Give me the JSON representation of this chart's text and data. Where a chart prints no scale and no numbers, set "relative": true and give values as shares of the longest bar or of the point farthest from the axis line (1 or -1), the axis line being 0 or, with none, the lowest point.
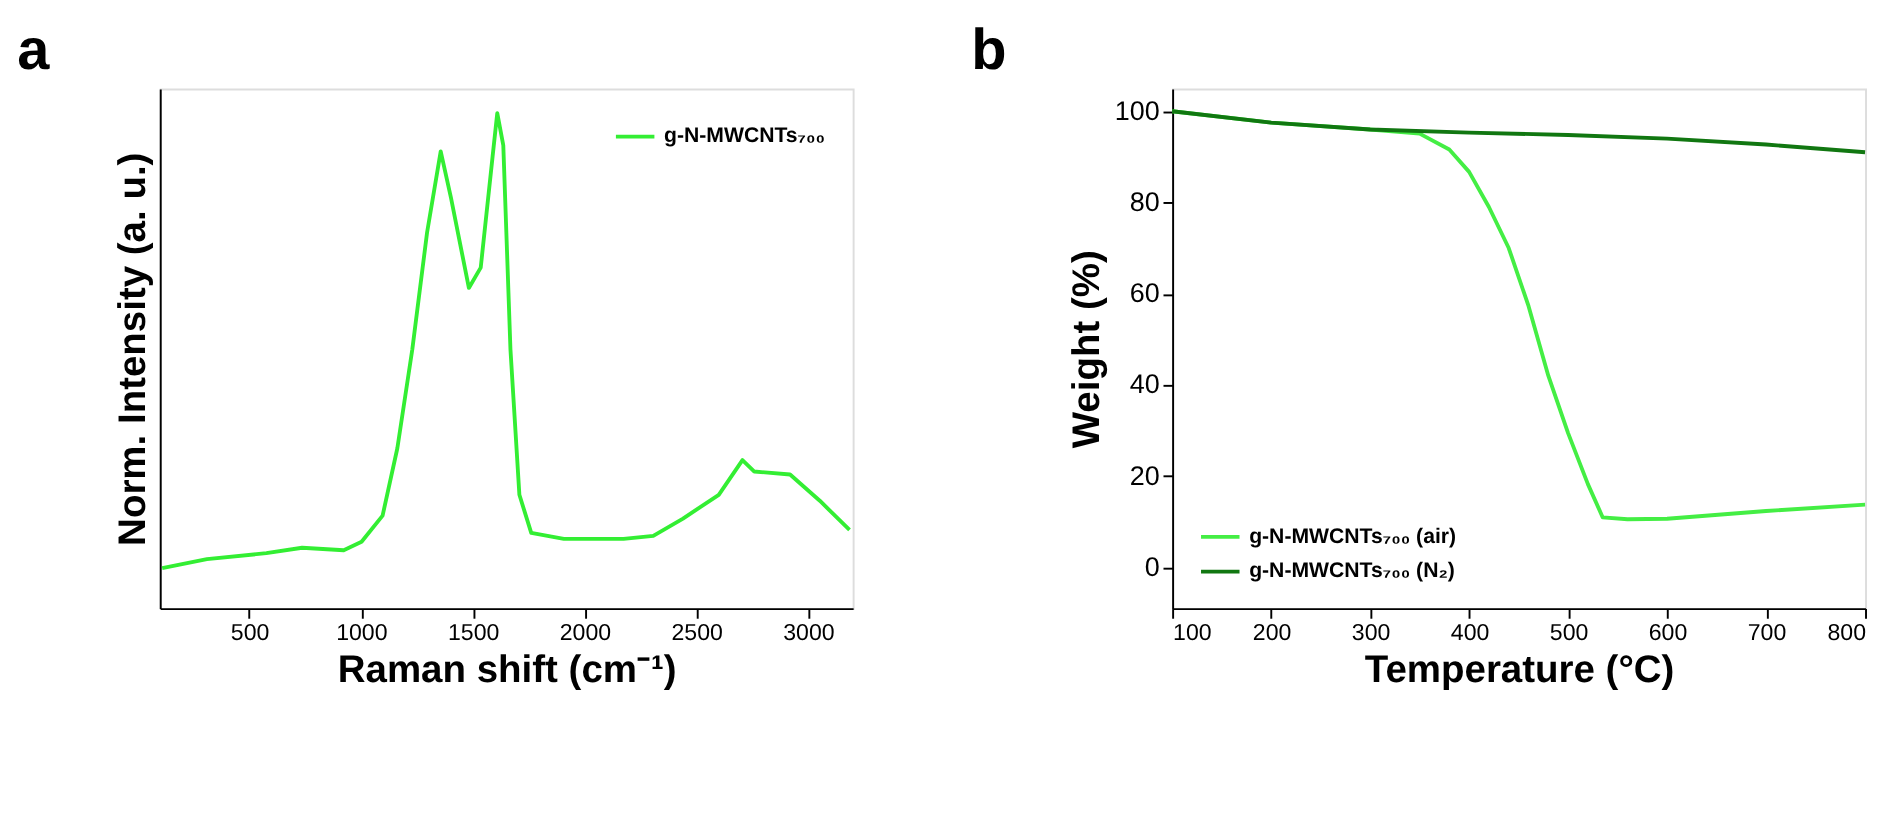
{
  "chart_data": [
    {
      "type": "line",
      "title": "a",
      "xlabel": "Raman shift (cm⁻¹)",
      "ylabel": "Norm. Intensity (a. u.)",
      "relative": true,
      "tick_labels": "x",
      "grid": false,
      "legend": "top right",
      "xlim": [
        100,
        3200
      ],
      "xticks": [
        500,
        1000,
        1500,
        2000,
        2500,
        3000
      ],
      "series": [
        {
          "name": "g-N-MWCNTs₇₀₀",
          "color": "#33ee33",
          "x": [
            111,
            311,
            577,
            737,
            923,
            1003,
            1097,
            1163,
            1230,
            1296,
            1357,
            1403,
            1483,
            1536,
            1589,
            1610,
            1637,
            1669,
            1709,
            1762,
            1908,
            2175,
            2308,
            2441,
            2601,
            2707,
            2760,
            2920,
            3053,
            3186
          ],
          "values": [
            0.081,
            0.099,
            0.111,
            0.122,
            0.117,
            0.134,
            0.187,
            0.323,
            0.523,
            0.759,
            0.923,
            0.829,
            0.647,
            0.688,
            0.912,
            1.0,
            0.935,
            0.523,
            0.229,
            0.152,
            0.14,
            0.14,
            0.146,
            0.181,
            0.229,
            0.299,
            0.276,
            0.27,
            0.217,
            0.158
          ]
        }
      ]
    },
    {
      "type": "line",
      "title": "b",
      "xlabel": "Temperature (°C)",
      "ylabel": "Weight (%)",
      "grid": false,
      "legend": "bottom left",
      "xlim": [
        100,
        800
      ],
      "xticks": [
        100,
        200,
        300,
        400,
        500,
        600,
        700,
        800
      ],
      "ylim": [
        -9,
        105
      ],
      "yticks": [
        0,
        20,
        40,
        60,
        80,
        100
      ],
      "series": [
        {
          "name": "g-N-MWCNTs₇₀₀ (air)",
          "color": "#44ee44",
          "x": [
            100,
            200,
            300,
            350,
            380,
            400,
            420,
            440,
            460,
            480,
            500,
            520,
            535,
            560,
            600,
            700,
            800
          ],
          "values": [
            100,
            97.5,
            96,
            95.1,
            91.6,
            86.7,
            79,
            70,
            57.3,
            42,
            29.4,
            18.2,
            10.9,
            10.5,
            10.6,
            12.3,
            13.7
          ]
        },
        {
          "name": "g-N-MWCNTs₇₀₀ (N₂)",
          "color": "#117711",
          "x": [
            100,
            200,
            300,
            400,
            500,
            600,
            700,
            800
          ],
          "values": [
            100,
            97.5,
            96,
            95.3,
            94.8,
            94,
            92.7,
            91
          ]
        }
      ]
    }
  ]
}
